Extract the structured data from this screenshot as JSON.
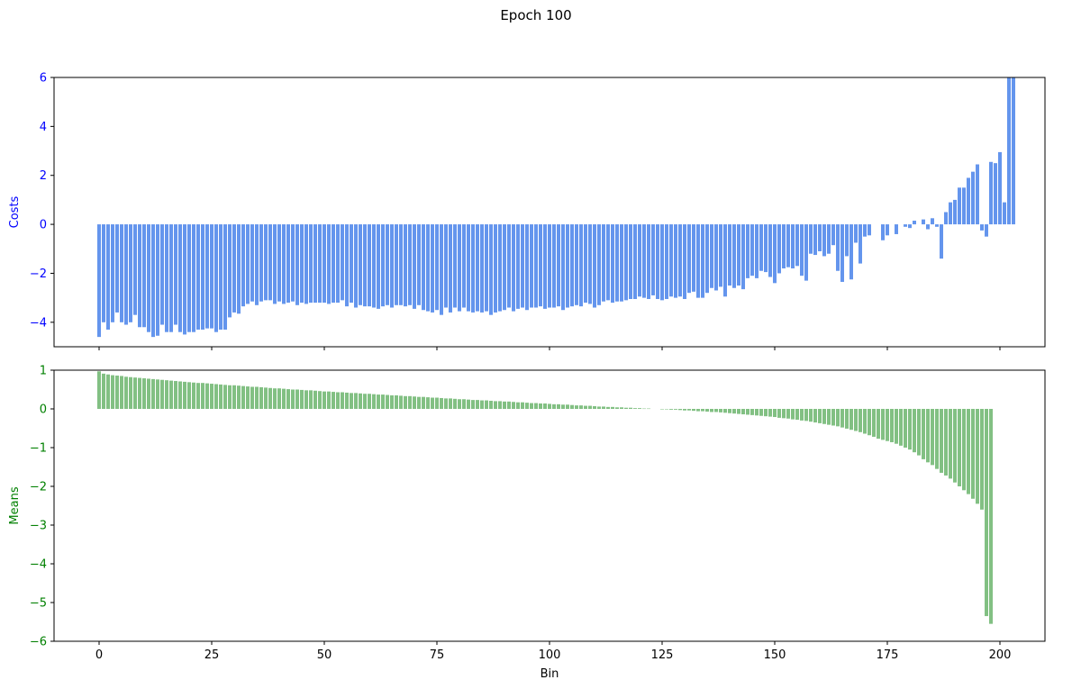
{
  "figure": {
    "suptitle": "Epoch 100"
  },
  "chart_data": [
    {
      "type": "bar",
      "ylabel": "Costs",
      "xlabel": "",
      "xlim": [
        -10,
        210
      ],
      "ylim": [
        -5,
        6
      ],
      "xticks": [
        0,
        25,
        50,
        75,
        100,
        125,
        150,
        175,
        200
      ],
      "yticks": [
        -4,
        -2,
        0,
        2,
        4,
        6
      ],
      "tick_label_color": "#0000ff",
      "bar_color": "#6495ed",
      "grid": false,
      "x": "bins 0..199",
      "values": [
        -4.6,
        -4.0,
        -4.3,
        -4.0,
        -3.6,
        -4.0,
        -4.1,
        -4.0,
        -3.7,
        -4.2,
        -4.2,
        -4.4,
        -4.6,
        -4.55,
        -4.1,
        -4.4,
        -4.4,
        -4.1,
        -4.4,
        -4.5,
        -4.4,
        -4.4,
        -4.3,
        -4.3,
        -4.25,
        -4.25,
        -4.4,
        -4.3,
        -4.3,
        -3.8,
        -3.6,
        -3.65,
        -3.35,
        -3.25,
        -3.15,
        -3.3,
        -3.15,
        -3.1,
        -3.1,
        -3.25,
        -3.15,
        -3.25,
        -3.2,
        -3.15,
        -3.3,
        -3.2,
        -3.25,
        -3.2,
        -3.2,
        -3.2,
        -3.2,
        -3.25,
        -3.2,
        -3.2,
        -3.1,
        -3.35,
        -3.2,
        -3.4,
        -3.3,
        -3.35,
        -3.35,
        -3.4,
        -3.45,
        -3.35,
        -3.3,
        -3.4,
        -3.3,
        -3.3,
        -3.35,
        -3.3,
        -3.45,
        -3.3,
        -3.5,
        -3.55,
        -3.6,
        -3.5,
        -3.7,
        -3.4,
        -3.6,
        -3.4,
        -3.55,
        -3.4,
        -3.55,
        -3.6,
        -3.55,
        -3.6,
        -3.55,
        -3.7,
        -3.6,
        -3.55,
        -3.5,
        -3.4,
        -3.55,
        -3.45,
        -3.4,
        -3.5,
        -3.4,
        -3.4,
        -3.35,
        -3.45,
        -3.4,
        -3.4,
        -3.35,
        -3.5,
        -3.4,
        -3.35,
        -3.3,
        -3.35,
        -3.2,
        -3.25,
        -3.4,
        -3.3,
        -3.15,
        -3.1,
        -3.2,
        -3.15,
        -3.15,
        -3.1,
        -3.05,
        -3.05,
        -2.95,
        -3.0,
        -3.05,
        -2.9,
        -3.05,
        -3.1,
        -3.05,
        -2.95,
        -3.0,
        -2.95,
        -3.05,
        -2.8,
        -2.75,
        -3.0,
        -3.0,
        -2.8,
        -2.6,
        -2.7,
        -2.55,
        -2.95,
        -2.5,
        -2.6,
        -2.5,
        -2.65,
        -2.2,
        -2.1,
        -2.2,
        -1.9,
        -1.95,
        -2.15,
        -2.4,
        -2.0,
        -1.8,
        -1.75,
        -1.8,
        -1.7,
        -2.1,
        -2.3,
        -1.2,
        -1.25,
        -1.1,
        -1.3,
        -1.2,
        -0.85,
        -1.9,
        -2.35,
        -1.3,
        -2.25,
        -0.75,
        -1.6,
        -0.5,
        -0.45,
        0,
        0,
        -0.65,
        -0.45,
        0,
        -0.4,
        0,
        -0.1,
        -0.15,
        0.15,
        0,
        0.2,
        -0.2,
        0.25,
        -0.1,
        -1.4,
        0.5,
        0.9,
        1.0,
        1.5,
        1.5,
        1.9,
        2.15,
        2.45,
        -0.25,
        -0.5,
        2.55,
        2.5,
        2.95,
        0.9,
        6.0,
        6.0
      ]
    },
    {
      "type": "bar",
      "ylabel": "Means",
      "xlabel": "Bin",
      "xlim": [
        -10,
        210
      ],
      "ylim": [
        -6,
        1
      ],
      "xticks": [
        0,
        25,
        50,
        75,
        100,
        125,
        150,
        175,
        200
      ],
      "yticks": [
        -6,
        -5,
        -4,
        -3,
        -2,
        -1,
        0,
        1
      ],
      "tick_label_color": "#008000",
      "bar_color": "#82c083",
      "grid": false,
      "x": "bins 0..199",
      "values": [
        0.97,
        0.91,
        0.89,
        0.87,
        0.86,
        0.85,
        0.83,
        0.82,
        0.81,
        0.8,
        0.79,
        0.78,
        0.77,
        0.76,
        0.75,
        0.74,
        0.73,
        0.72,
        0.71,
        0.7,
        0.69,
        0.68,
        0.67,
        0.67,
        0.66,
        0.65,
        0.64,
        0.63,
        0.62,
        0.61,
        0.61,
        0.6,
        0.59,
        0.58,
        0.57,
        0.57,
        0.56,
        0.55,
        0.54,
        0.53,
        0.53,
        0.52,
        0.51,
        0.5,
        0.5,
        0.49,
        0.48,
        0.48,
        0.47,
        0.46,
        0.45,
        0.45,
        0.44,
        0.43,
        0.43,
        0.42,
        0.41,
        0.41,
        0.4,
        0.39,
        0.39,
        0.38,
        0.37,
        0.37,
        0.36,
        0.35,
        0.35,
        0.34,
        0.33,
        0.33,
        0.32,
        0.31,
        0.31,
        0.3,
        0.29,
        0.29,
        0.28,
        0.27,
        0.27,
        0.26,
        0.25,
        0.25,
        0.24,
        0.23,
        0.23,
        0.22,
        0.22,
        0.21,
        0.2,
        0.2,
        0.19,
        0.19,
        0.18,
        0.17,
        0.17,
        0.16,
        0.15,
        0.15,
        0.14,
        0.14,
        0.13,
        0.12,
        0.12,
        0.11,
        0.11,
        0.1,
        0.09,
        0.09,
        0.08,
        0.08,
        0.07,
        0.06,
        0.06,
        0.05,
        0.05,
        0.04,
        0.04,
        0.03,
        0.03,
        0.02,
        0.02,
        0.01,
        0.01,
        0.0,
        -0.0,
        -0.01,
        -0.01,
        -0.02,
        -0.02,
        -0.03,
        -0.04,
        -0.04,
        -0.05,
        -0.06,
        -0.06,
        -0.07,
        -0.08,
        -0.08,
        -0.09,
        -0.1,
        -0.11,
        -0.12,
        -0.13,
        -0.14,
        -0.15,
        -0.16,
        -0.17,
        -0.18,
        -0.19,
        -0.2,
        -0.21,
        -0.23,
        -0.24,
        -0.25,
        -0.27,
        -0.28,
        -0.3,
        -0.31,
        -0.33,
        -0.35,
        -0.37,
        -0.39,
        -0.41,
        -0.43,
        -0.45,
        -0.48,
        -0.51,
        -0.54,
        -0.57,
        -0.6,
        -0.64,
        -0.68,
        -0.72,
        -0.77,
        -0.8,
        -0.83,
        -0.86,
        -0.9,
        -0.95,
        -1.0,
        -1.05,
        -1.12,
        -1.2,
        -1.3,
        -1.38,
        -1.45,
        -1.55,
        -1.65,
        -1.72,
        -1.8,
        -1.9,
        -2.0,
        -2.1,
        -2.2,
        -2.32,
        -2.45,
        -2.6,
        -5.35,
        -5.55
      ]
    }
  ]
}
